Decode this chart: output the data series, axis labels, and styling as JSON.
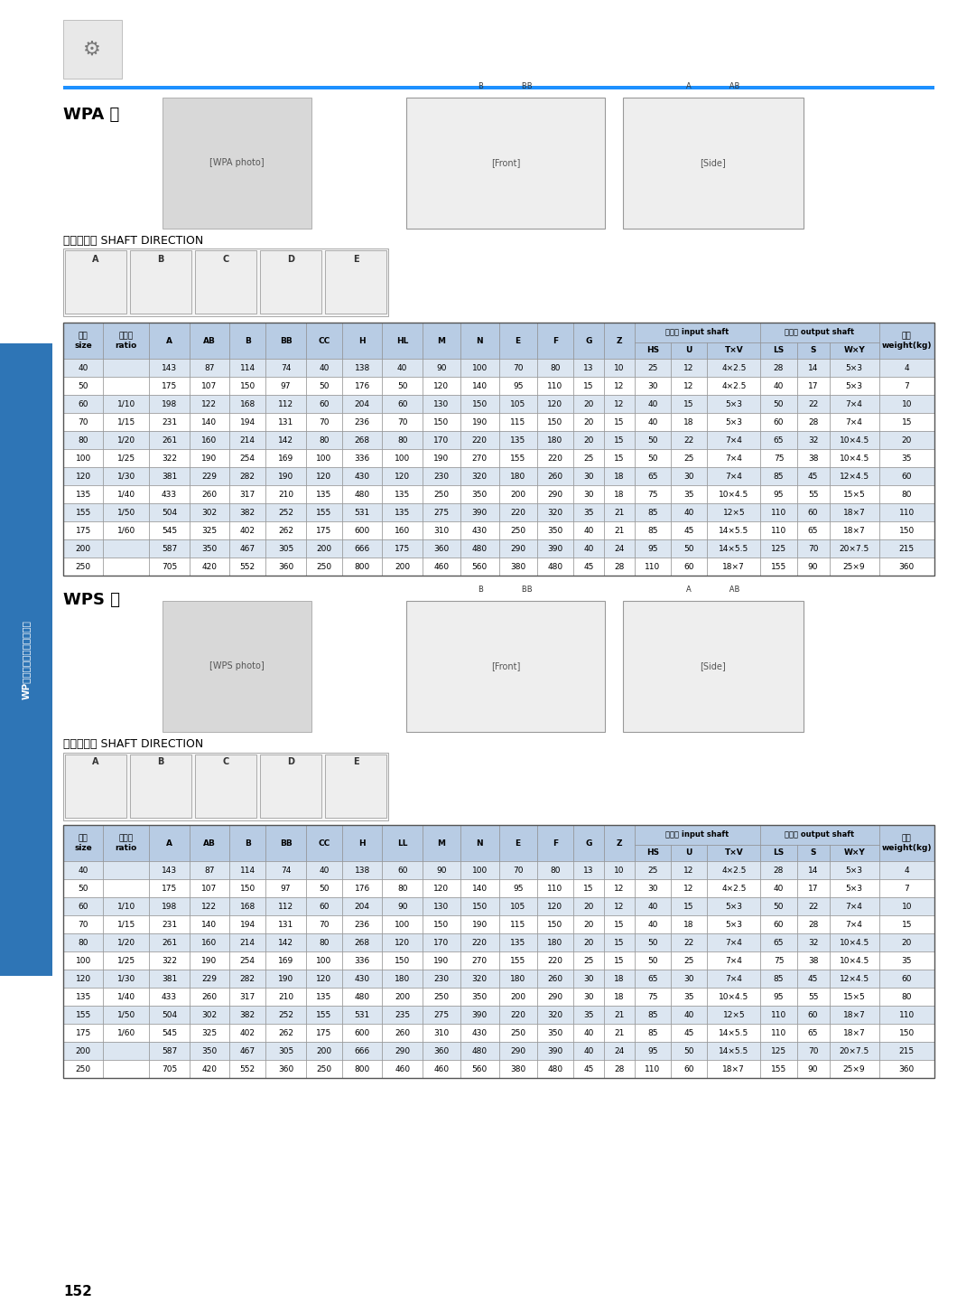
{
  "page_number": "152",
  "sidebar_text": "WP系列蜀轮减速机系列产品",
  "blue_line_color": "#1e90ff",
  "table_border_color": "#888888",
  "header_bg": "#b8cce4",
  "cell_light": "#dce6f1",
  "cell_white": "#ffffff",
  "bg_color": "#ffffff",
  "sidebar_color": "#2e75b6",
  "wpa_title": "WPA 型",
  "wps_title": "WPS 型",
  "shaft_label": "轴指向表示 SHAFT DIRECTION",
  "col_props": [
    0.042,
    0.048,
    0.042,
    0.042,
    0.038,
    0.042,
    0.038,
    0.042,
    0.042,
    0.04,
    0.04,
    0.04,
    0.038,
    0.032,
    0.032,
    0.038,
    0.038,
    0.056,
    0.038,
    0.034,
    0.052,
    0.058
  ],
  "wpa_header1": [
    "型号\nsize",
    "减速比\nratio",
    "A",
    "AB",
    "B",
    "BB",
    "CC",
    "H",
    "HL",
    "M",
    "N",
    "E",
    "F",
    "G",
    "Z",
    "入力轴 input shaft",
    "",
    "",
    "出力轴 output shaft",
    "",
    "",
    "重量\nweight(kg)"
  ],
  "wpa_h2": [
    "HS",
    "U",
    "T×V",
    "LS",
    "S",
    "W×Y"
  ],
  "wps_h2": [
    "HS",
    "U",
    "T×V",
    "LS",
    "S",
    "W×Y"
  ],
  "wpa_col8_label": "HL",
  "wps_col8_label": "LL",
  "wpa_data": [
    [
      "40",
      "",
      "143",
      "87",
      "114",
      "74",
      "40",
      "138",
      "40",
      "90",
      "100",
      "70",
      "80",
      "13",
      "10",
      "25",
      "12",
      "4×2.5",
      "28",
      "14",
      "5×3",
      "4"
    ],
    [
      "50",
      "",
      "175",
      "107",
      "150",
      "97",
      "50",
      "176",
      "50",
      "120",
      "140",
      "95",
      "110",
      "15",
      "12",
      "30",
      "12",
      "4×2.5",
      "40",
      "17",
      "5×3",
      "7"
    ],
    [
      "60",
      "1/10",
      "198",
      "122",
      "168",
      "112",
      "60",
      "204",
      "60",
      "130",
      "150",
      "105",
      "120",
      "20",
      "12",
      "40",
      "15",
      "5×3",
      "50",
      "22",
      "7×4",
      "10"
    ],
    [
      "70",
      "1/15",
      "231",
      "140",
      "194",
      "131",
      "70",
      "236",
      "70",
      "150",
      "190",
      "115",
      "150",
      "20",
      "15",
      "40",
      "18",
      "5×3",
      "60",
      "28",
      "7×4",
      "15"
    ],
    [
      "80",
      "1/20",
      "261",
      "160",
      "214",
      "142",
      "80",
      "268",
      "80",
      "170",
      "220",
      "135",
      "180",
      "20",
      "15",
      "50",
      "22",
      "7×4",
      "65",
      "32",
      "10×4.5",
      "20"
    ],
    [
      "100",
      "1/25",
      "322",
      "190",
      "254",
      "169",
      "100",
      "336",
      "100",
      "190",
      "270",
      "155",
      "220",
      "25",
      "15",
      "50",
      "25",
      "7×4",
      "75",
      "38",
      "10×4.5",
      "35"
    ],
    [
      "120",
      "1/30",
      "381",
      "229",
      "282",
      "190",
      "120",
      "430",
      "120",
      "230",
      "320",
      "180",
      "260",
      "30",
      "18",
      "65",
      "30",
      "7×4",
      "85",
      "45",
      "12×4.5",
      "60"
    ],
    [
      "135",
      "1/40",
      "433",
      "260",
      "317",
      "210",
      "135",
      "480",
      "135",
      "250",
      "350",
      "200",
      "290",
      "30",
      "18",
      "75",
      "35",
      "10×4.5",
      "95",
      "55",
      "15×5",
      "80"
    ],
    [
      "155",
      "1/50",
      "504",
      "302",
      "382",
      "252",
      "155",
      "531",
      "135",
      "275",
      "390",
      "220",
      "320",
      "35",
      "21",
      "85",
      "40",
      "12×5",
      "110",
      "60",
      "18×7",
      "110"
    ],
    [
      "175",
      "1/60",
      "545",
      "325",
      "402",
      "262",
      "175",
      "600",
      "160",
      "310",
      "430",
      "250",
      "350",
      "40",
      "21",
      "85",
      "45",
      "14×5.5",
      "110",
      "65",
      "18×7",
      "150"
    ],
    [
      "200",
      "",
      "587",
      "350",
      "467",
      "305",
      "200",
      "666",
      "175",
      "360",
      "480",
      "290",
      "390",
      "40",
      "24",
      "95",
      "50",
      "14×5.5",
      "125",
      "70",
      "20×7.5",
      "215"
    ],
    [
      "250",
      "",
      "705",
      "420",
      "552",
      "360",
      "250",
      "800",
      "200",
      "460",
      "560",
      "380",
      "480",
      "45",
      "28",
      "110",
      "60",
      "18×7",
      "155",
      "90",
      "25×9",
      "360"
    ]
  ],
  "wps_data": [
    [
      "40",
      "",
      "143",
      "87",
      "114",
      "74",
      "40",
      "138",
      "60",
      "90",
      "100",
      "70",
      "80",
      "13",
      "10",
      "25",
      "12",
      "4×2.5",
      "28",
      "14",
      "5×3",
      "4"
    ],
    [
      "50",
      "",
      "175",
      "107",
      "150",
      "97",
      "50",
      "176",
      "80",
      "120",
      "140",
      "95",
      "110",
      "15",
      "12",
      "30",
      "12",
      "4×2.5",
      "40",
      "17",
      "5×3",
      "7"
    ],
    [
      "60",
      "1/10",
      "198",
      "122",
      "168",
      "112",
      "60",
      "204",
      "90",
      "130",
      "150",
      "105",
      "120",
      "20",
      "12",
      "40",
      "15",
      "5×3",
      "50",
      "22",
      "7×4",
      "10"
    ],
    [
      "70",
      "1/15",
      "231",
      "140",
      "194",
      "131",
      "70",
      "236",
      "100",
      "150",
      "190",
      "115",
      "150",
      "20",
      "15",
      "40",
      "18",
      "5×3",
      "60",
      "28",
      "7×4",
      "15"
    ],
    [
      "80",
      "1/20",
      "261",
      "160",
      "214",
      "142",
      "80",
      "268",
      "120",
      "170",
      "220",
      "135",
      "180",
      "20",
      "15",
      "50",
      "22",
      "7×4",
      "65",
      "32",
      "10×4.5",
      "20"
    ],
    [
      "100",
      "1/25",
      "322",
      "190",
      "254",
      "169",
      "100",
      "336",
      "150",
      "190",
      "270",
      "155",
      "220",
      "25",
      "15",
      "50",
      "25",
      "7×4",
      "75",
      "38",
      "10×4.5",
      "35"
    ],
    [
      "120",
      "1/30",
      "381",
      "229",
      "282",
      "190",
      "120",
      "430",
      "180",
      "230",
      "320",
      "180",
      "260",
      "30",
      "18",
      "65",
      "30",
      "7×4",
      "85",
      "45",
      "12×4.5",
      "60"
    ],
    [
      "135",
      "1/40",
      "433",
      "260",
      "317",
      "210",
      "135",
      "480",
      "200",
      "250",
      "350",
      "200",
      "290",
      "30",
      "18",
      "75",
      "35",
      "10×4.5",
      "95",
      "55",
      "15×5",
      "80"
    ],
    [
      "155",
      "1/50",
      "504",
      "302",
      "382",
      "252",
      "155",
      "531",
      "235",
      "275",
      "390",
      "220",
      "320",
      "35",
      "21",
      "85",
      "40",
      "12×5",
      "110",
      "60",
      "18×7",
      "110"
    ],
    [
      "175",
      "1/60",
      "545",
      "325",
      "402",
      "262",
      "175",
      "600",
      "260",
      "310",
      "430",
      "250",
      "350",
      "40",
      "21",
      "85",
      "45",
      "14×5.5",
      "110",
      "65",
      "18×7",
      "150"
    ],
    [
      "200",
      "",
      "587",
      "350",
      "467",
      "305",
      "200",
      "666",
      "290",
      "360",
      "480",
      "290",
      "390",
      "40",
      "24",
      "95",
      "50",
      "14×5.5",
      "125",
      "70",
      "20×7.5",
      "215"
    ],
    [
      "250",
      "",
      "705",
      "420",
      "552",
      "360",
      "250",
      "800",
      "460",
      "460",
      "560",
      "380",
      "480",
      "45",
      "28",
      "110",
      "60",
      "18×7",
      "155",
      "90",
      "25×9",
      "360"
    ]
  ]
}
